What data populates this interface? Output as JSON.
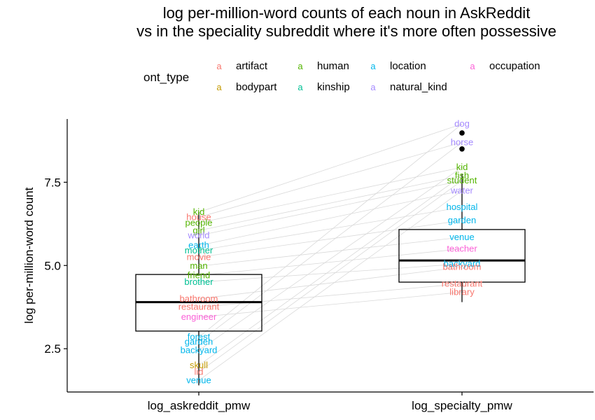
{
  "chart_data": {
    "type": "boxplot",
    "title_lines": [
      "log per-million-word counts of each noun in AskReddit",
      "vs in the speciality subreddit where it's more often possessive"
    ],
    "ylabel": "log per-million-word count",
    "xlabel": "",
    "categories": [
      "log_askreddit_pmw",
      "log_specialty_pmw"
    ],
    "ylim": [
      1.2,
      9.4
    ],
    "yticks": [
      2.5,
      5.0,
      7.5
    ],
    "ytick_labels": [
      "2.5",
      "5.0",
      "7.5"
    ],
    "grid": false,
    "legend": {
      "title": "ont_type",
      "position": "top",
      "key_glyph": "a",
      "entries": [
        {
          "name": "artifact",
          "color": "#F8766D"
        },
        {
          "name": "bodypart",
          "color": "#C49A00"
        },
        {
          "name": "human",
          "color": "#53B400"
        },
        {
          "name": "kinship",
          "color": "#00C094"
        },
        {
          "name": "location",
          "color": "#00B6EB"
        },
        {
          "name": "natural_kind",
          "color": "#A58AFF"
        },
        {
          "name": "occupation",
          "color": "#FB61D7"
        }
      ]
    },
    "boxes": [
      {
        "category": "log_askreddit_pmw",
        "q1": 3.03,
        "median": 3.9,
        "q3": 4.73,
        "whisker_low": 1.4,
        "whisker_high": 6.6,
        "outliers": []
      },
      {
        "category": "log_specialty_pmw",
        "q1": 4.5,
        "median": 5.15,
        "q3": 6.08,
        "whisker_low": 3.9,
        "whisker_high": 7.75,
        "outliers": [
          8.98,
          8.5
        ]
      }
    ],
    "labeled_points": [
      {
        "category": "log_askreddit_pmw",
        "label": "kid",
        "y": 6.6,
        "ont_type": "human"
      },
      {
        "category": "log_askreddit_pmw",
        "label": "house",
        "y": 6.45,
        "ont_type": "artifact"
      },
      {
        "category": "log_askreddit_pmw",
        "label": "people",
        "y": 6.28,
        "ont_type": "human"
      },
      {
        "category": "log_askreddit_pmw",
        "label": "girl",
        "y": 6.05,
        "ont_type": "human"
      },
      {
        "category": "log_askreddit_pmw",
        "label": "world",
        "y": 5.9,
        "ont_type": "natural_kind"
      },
      {
        "category": "log_askreddit_pmw",
        "label": "earth",
        "y": 5.6,
        "ont_type": "location"
      },
      {
        "category": "log_askreddit_pmw",
        "label": "mother",
        "y": 5.45,
        "ont_type": "kinship"
      },
      {
        "category": "log_askreddit_pmw",
        "label": "movie",
        "y": 5.25,
        "ont_type": "artifact"
      },
      {
        "category": "log_askreddit_pmw",
        "label": "man",
        "y": 4.98,
        "ont_type": "human"
      },
      {
        "category": "log_askreddit_pmw",
        "label": "friend",
        "y": 4.7,
        "ont_type": "human"
      },
      {
        "category": "log_askreddit_pmw",
        "label": "brother",
        "y": 4.5,
        "ont_type": "kinship"
      },
      {
        "category": "log_askreddit_pmw",
        "label": "bathroom",
        "y": 4.0,
        "ont_type": "artifact"
      },
      {
        "category": "log_askreddit_pmw",
        "label": "restaurant",
        "y": 3.75,
        "ont_type": "artifact"
      },
      {
        "category": "log_askreddit_pmw",
        "label": "engineer",
        "y": 3.45,
        "ont_type": "occupation"
      },
      {
        "category": "log_askreddit_pmw",
        "label": "forest",
        "y": 2.85,
        "ont_type": "location"
      },
      {
        "category": "log_askreddit_pmw",
        "label": "garden",
        "y": 2.7,
        "ont_type": "location"
      },
      {
        "category": "log_askreddit_pmw",
        "label": "backyard",
        "y": 2.45,
        "ont_type": "location"
      },
      {
        "category": "log_askreddit_pmw",
        "label": "skull",
        "y": 2.0,
        "ont_type": "bodypart"
      },
      {
        "category": "log_askreddit_pmw",
        "label": "lid",
        "y": 1.8,
        "ont_type": "artifact"
      },
      {
        "category": "log_askreddit_pmw",
        "label": "venue",
        "y": 1.55,
        "ont_type": "location"
      },
      {
        "category": "log_specialty_pmw",
        "label": "dog",
        "y": 9.25,
        "ont_type": "natural_kind"
      },
      {
        "category": "log_specialty_pmw",
        "label": "horse",
        "y": 8.7,
        "ont_type": "natural_kind"
      },
      {
        "category": "log_specialty_pmw",
        "label": "kid",
        "y": 7.95,
        "ont_type": "human"
      },
      {
        "category": "log_specialty_pmw",
        "label": "fish",
        "y": 7.7,
        "ont_type": "human"
      },
      {
        "category": "log_specialty_pmw",
        "label": "student",
        "y": 7.55,
        "ont_type": "human"
      },
      {
        "category": "log_specialty_pmw",
        "label": "water",
        "y": 7.25,
        "ont_type": "natural_kind"
      },
      {
        "category": "log_specialty_pmw",
        "label": "hospital",
        "y": 6.75,
        "ont_type": "location"
      },
      {
        "category": "log_specialty_pmw",
        "label": "garden",
        "y": 6.35,
        "ont_type": "location"
      },
      {
        "category": "log_specialty_pmw",
        "label": "venue",
        "y": 5.85,
        "ont_type": "location"
      },
      {
        "category": "log_specialty_pmw",
        "label": "teacher",
        "y": 5.5,
        "ont_type": "occupation"
      },
      {
        "category": "log_specialty_pmw",
        "label": "backyard",
        "y": 5.05,
        "ont_type": "location"
      },
      {
        "category": "log_specialty_pmw",
        "label": "bathroom",
        "y": 4.95,
        "ont_type": "artifact"
      },
      {
        "category": "log_specialty_pmw",
        "label": "restaurant",
        "y": 4.45,
        "ont_type": "artifact"
      },
      {
        "category": "log_specialty_pmw",
        "label": "library",
        "y": 4.2,
        "ont_type": "artifact"
      }
    ]
  },
  "colors": {
    "axis": "#000000",
    "segment": "#d9d9d9",
    "box_stroke": "#000000"
  }
}
